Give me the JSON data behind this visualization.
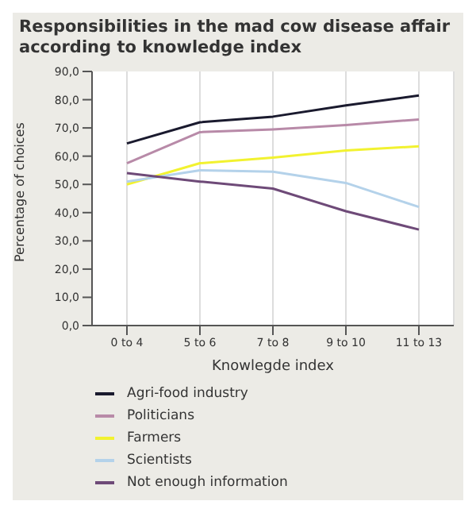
{
  "chart_data": {
    "type": "line",
    "title": "Responsibilities in the mad cow disease affair according to knowledge index",
    "xlabel": "Knowlegde index",
    "ylabel": "Percentage of choices",
    "categories": [
      "0 to 4",
      "5 to 6",
      "7 to 8",
      "9 to 10",
      "11 to 13"
    ],
    "series": [
      {
        "name": "Agri-food industry",
        "color": "#1a1a2e",
        "values": [
          64.5,
          72,
          74,
          78,
          81.5
        ]
      },
      {
        "name": "Politicians",
        "color": "#b88aa8",
        "values": [
          57.5,
          68.5,
          69.5,
          71,
          73
        ]
      },
      {
        "name": "Farmers",
        "color": "#f2f230",
        "values": [
          50,
          57.5,
          59.5,
          62,
          63.5
        ]
      },
      {
        "name": "Scientists",
        "color": "#b4d2ea",
        "values": [
          51,
          55,
          54.5,
          50.5,
          42
        ]
      },
      {
        "name": "Not enough information",
        "color": "#6e4a78",
        "values": [
          54,
          51,
          48.5,
          40.5,
          34
        ]
      }
    ],
    "ylim": [
      0,
      90
    ],
    "yticks": [
      {
        "value": 0,
        "label": "0,0"
      },
      {
        "value": 10,
        "label": "10,0"
      },
      {
        "value": 20,
        "label": "20,0"
      },
      {
        "value": 30,
        "label": "30,0"
      },
      {
        "value": 40,
        "label": "40,0"
      },
      {
        "value": 50,
        "label": "50,0"
      },
      {
        "value": 60,
        "label": "60,0"
      },
      {
        "value": 70,
        "label": "70,0"
      },
      {
        "value": 80,
        "label": "80,0"
      },
      {
        "value": 90,
        "label": "90,0"
      }
    ],
    "grid": "x",
    "legend": "bottom",
    "marker": "none",
    "line_style": "solid"
  }
}
